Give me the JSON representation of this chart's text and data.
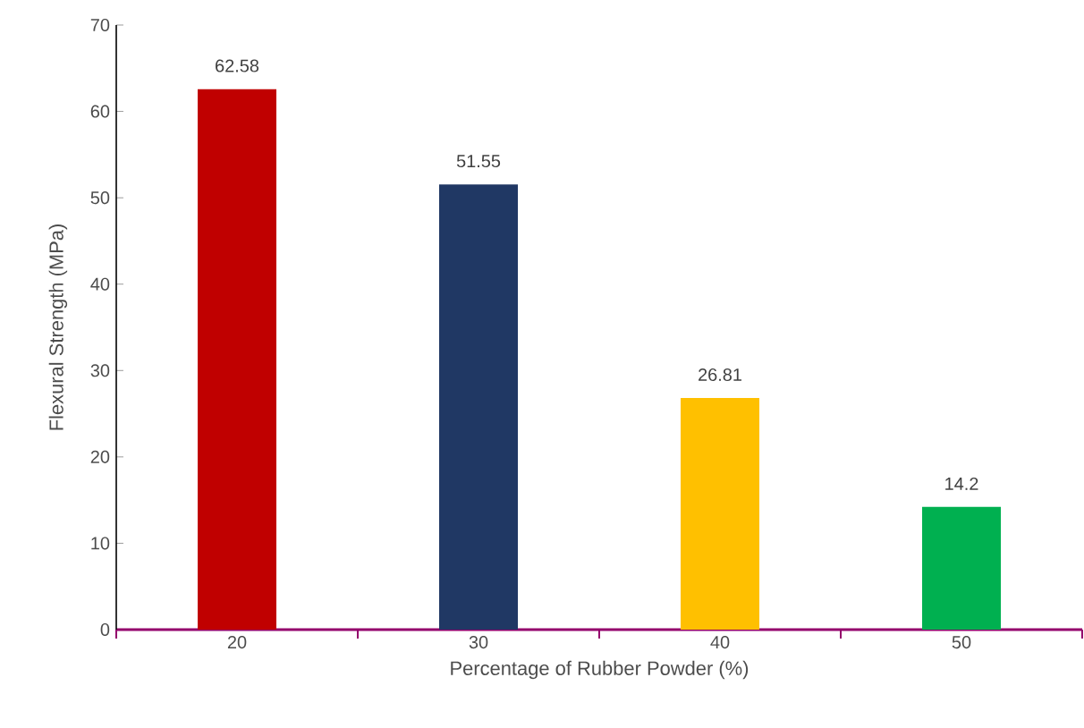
{
  "chart_data": {
    "type": "bar",
    "xlabel": "Percentage of Rubber Powder (%)",
    "ylabel": "Flexural Strength (MPa)",
    "categories": [
      "20",
      "30",
      "40",
      "50"
    ],
    "values": [
      62.58,
      51.55,
      26.81,
      14.2
    ],
    "colors": [
      "#c00000",
      "#203864",
      "#ffc000",
      "#00b050"
    ],
    "ylim": [
      0,
      70
    ],
    "yticks": [
      0,
      10,
      20,
      30,
      40,
      50,
      60,
      70
    ],
    "data_labels": true,
    "grid": false
  }
}
